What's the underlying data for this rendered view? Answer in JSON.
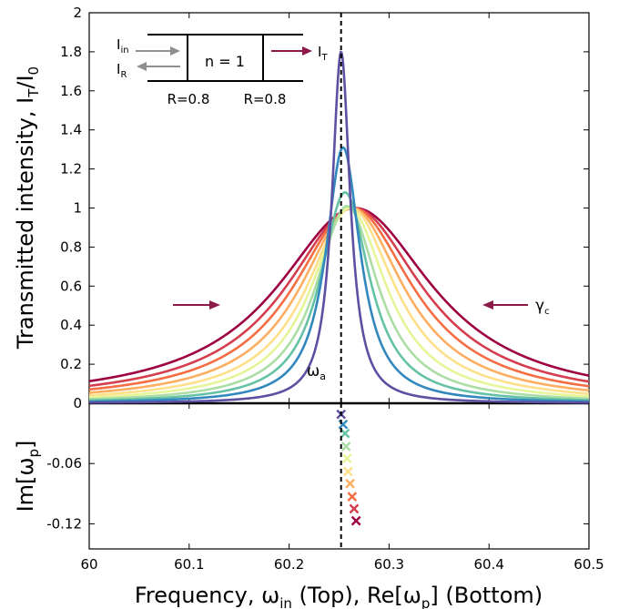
{
  "chart_data": [
    {
      "type": "line",
      "panel": "top",
      "ylabel": "Transmitted intensity, I",
      "ylabel_sub1": "T",
      "ylabel_mid": "/I",
      "ylabel_sub2": "0",
      "xlim": [
        60,
        60.5
      ],
      "ylim": [
        0,
        2
      ],
      "yticks": [
        "0",
        "0.2",
        "0.4",
        "0.6",
        "0.8",
        "1",
        "1.2",
        "1.4",
        "1.6",
        "1.8",
        "2"
      ],
      "ytick_values": [
        0,
        0.2,
        0.4,
        0.6,
        0.8,
        1,
        1.2,
        1.4,
        1.6,
        1.8,
        2
      ],
      "vline_x": 60.252,
      "omega_a_label": "ω",
      "omega_a_sub": "a",
      "gamma_label": "γ",
      "gamma_sub": "c",
      "series": [
        {
          "center": 60.266,
          "hwhm": 0.095,
          "peak": 1.0,
          "color": "#9e0142"
        },
        {
          "center": 60.265,
          "hwhm": 0.083,
          "peak": 1.0,
          "color": "#d53e4f"
        },
        {
          "center": 60.264,
          "hwhm": 0.073,
          "peak": 1.0,
          "color": "#f46d43"
        },
        {
          "center": 60.263,
          "hwhm": 0.063,
          "peak": 1.0,
          "color": "#fdae61"
        },
        {
          "center": 60.262,
          "hwhm": 0.054,
          "peak": 1.0,
          "color": "#fee08b"
        },
        {
          "center": 60.26,
          "hwhm": 0.046,
          "peak": 1.0,
          "color": "#e6f598"
        },
        {
          "center": 60.258,
          "hwhm": 0.038,
          "peak": 1.01,
          "color": "#abdda4"
        },
        {
          "center": 60.256,
          "hwhm": 0.03,
          "peak": 1.08,
          "color": "#66c2a5"
        },
        {
          "center": 60.254,
          "hwhm": 0.021,
          "peak": 1.31,
          "color": "#3288bd"
        },
        {
          "center": 60.252,
          "hwhm": 0.011,
          "peak": 1.8,
          "color": "#5e4fa2"
        }
      ]
    },
    {
      "type": "scatter",
      "panel": "bottom",
      "ylabel": "Im[ω",
      "ylabel_sub": "p",
      "ylabel_end": "]",
      "xlabel": "Frequency, ω",
      "xlabel_sub1": "in",
      "xlabel_mid": " (Top), Re[ω",
      "xlabel_sub2": "p",
      "xlabel_end": "] (Bottom)",
      "xlim": [
        60,
        60.5
      ],
      "ylim": [
        -0.145,
        0
      ],
      "xticks": [
        "60",
        "60.1",
        "60.2",
        "60.3",
        "60.4",
        "60.5"
      ],
      "xtick_values": [
        60,
        60.1,
        60.2,
        60.3,
        60.4,
        60.5
      ],
      "yticks": [
        "-0.06",
        "-0.12"
      ],
      "ytick_values": [
        -0.06,
        -0.12
      ],
      "points": [
        {
          "x": 60.252,
          "y": -0.011,
          "color": "#5e4fa2"
        },
        {
          "x": 60.254,
          "y": -0.021,
          "color": "#3288bd"
        },
        {
          "x": 60.256,
          "y": -0.03,
          "color": "#66c2a5"
        },
        {
          "x": 60.257,
          "y": -0.043,
          "color": "#abdda4"
        },
        {
          "x": 60.258,
          "y": -0.055,
          "color": "#e6f598"
        },
        {
          "x": 60.259,
          "y": -0.068,
          "color": "#fee08b"
        },
        {
          "x": 60.261,
          "y": -0.08,
          "color": "#fdae61"
        },
        {
          "x": 60.263,
          "y": -0.093,
          "color": "#f46d43"
        },
        {
          "x": 60.265,
          "y": -0.105,
          "color": "#d53e4f"
        },
        {
          "x": 60.267,
          "y": -0.117,
          "color": "#9e0142"
        }
      ]
    }
  ],
  "inset": {
    "i_in": "I",
    "i_in_sub": "in",
    "i_r": "I",
    "i_r_sub": "R",
    "i_t": "I",
    "i_t_sub": "T",
    "n_label": "n = 1",
    "r_left": "R=0.8",
    "r_right": "R=0.8"
  },
  "colors": {
    "arrow": "#8b1a4a",
    "gray_arrow": "#909090",
    "vline": "#000000"
  }
}
